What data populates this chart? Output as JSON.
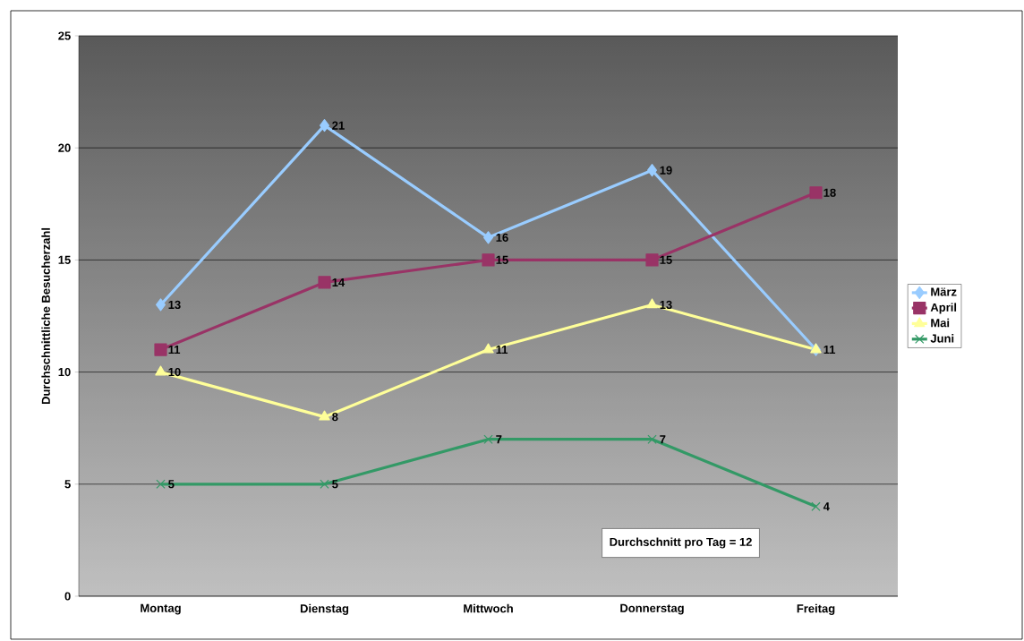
{
  "chart_data": {
    "type": "line",
    "ylabel": "Durchschnittliche Besucherzahl",
    "categories": [
      "Montag",
      "Dienstag",
      "Mittwoch",
      "Donnerstag",
      "Freitag"
    ],
    "series": [
      {
        "name": "März",
        "color": "#99ccff",
        "marker": "diamond",
        "values": [
          13,
          21,
          16,
          19,
          11
        ],
        "value_labels": [
          "13",
          "21",
          "16",
          "19",
          null
        ]
      },
      {
        "name": "April",
        "color": "#993366",
        "marker": "square",
        "values": [
          11,
          14,
          15,
          15,
          18
        ]
      },
      {
        "name": "Mai",
        "color": "#ffff99",
        "marker": "triangle",
        "values": [
          10,
          8,
          11,
          13,
          11
        ]
      },
      {
        "name": "Juni",
        "color": "#339966",
        "marker": "cross",
        "values": [
          5,
          5,
          7,
          7,
          4
        ]
      }
    ],
    "ylim": [
      0,
      25
    ],
    "yticks": [
      0,
      5,
      10,
      15,
      20,
      25
    ],
    "grid": "y",
    "legend": "right",
    "data_labels": true,
    "annotations": [
      "Durchschnitt pro Tag = 12"
    ]
  }
}
